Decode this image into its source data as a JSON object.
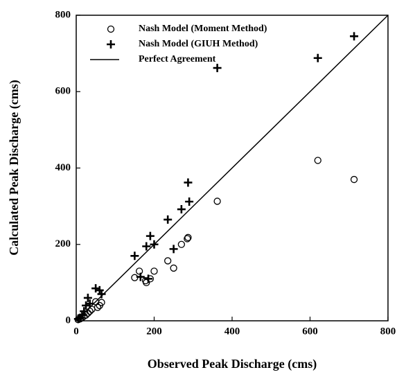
{
  "chart_data": {
    "type": "scatter",
    "x_label": "Observed Peak Discharge (cms)",
    "y_label": "Calculated Peak Discharge (cms)",
    "xlim": [
      0,
      800
    ],
    "ylim": [
      0,
      800
    ],
    "xticks": [
      0,
      200,
      400,
      600,
      800
    ],
    "yticks": [
      0,
      200,
      400,
      600,
      800
    ],
    "grid": false,
    "legend": "upper left",
    "series": [
      {
        "name": "Nash Model (Moment Method)",
        "marker": "circle",
        "color": "#000000",
        "x": [
          713,
          620,
          362,
          287,
          285,
          270,
          250,
          235,
          200,
          190,
          180,
          178,
          162,
          150,
          65,
          60,
          55,
          50,
          40,
          35,
          30,
          25,
          20,
          15,
          10,
          5
        ],
        "values": [
          370,
          420,
          313,
          218,
          215,
          200,
          138,
          157,
          130,
          110,
          100,
          105,
          130,
          113,
          48,
          40,
          35,
          50,
          30,
          25,
          20,
          15,
          12,
          8,
          5,
          3
        ]
      },
      {
        "name": "Nash Model (GIUH Method)",
        "marker": "plus",
        "color": "#000000",
        "x": [
          713,
          620,
          362,
          287,
          290,
          270,
          250,
          235,
          200,
          190,
          180,
          165,
          150,
          185,
          60,
          65,
          50,
          30,
          25,
          35,
          20,
          15,
          10,
          5
        ],
        "values": [
          745,
          688,
          662,
          362,
          312,
          292,
          188,
          265,
          200,
          222,
          195,
          115,
          170,
          110,
          80,
          70,
          85,
          60,
          40,
          45,
          25,
          15,
          8,
          5
        ]
      },
      {
        "name": "Perfect Agreement",
        "marker": "line",
        "color": "#000000",
        "x": [
          0,
          800
        ],
        "values": [
          0,
          800
        ]
      }
    ]
  }
}
